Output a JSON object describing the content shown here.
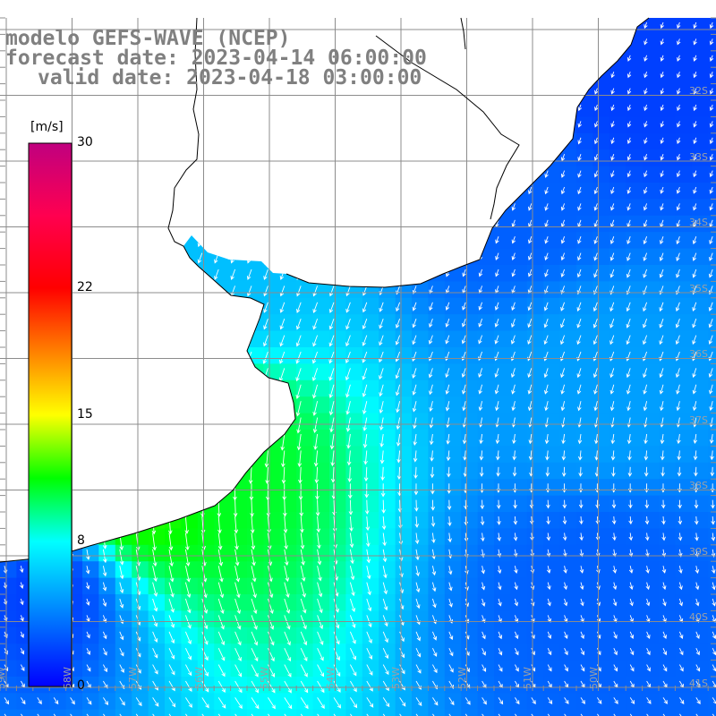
{
  "title": {
    "line1": "modelo GEFS-WAVE (NCEP)",
    "line2": "forecast date: 2023-04-14 06:00:00",
    "line3": "valid date: 2023-04-18 03:00:00"
  },
  "colorbar": {
    "unit": "[m/s]",
    "ticks": [
      {
        "label": "30",
        "value": 30
      },
      {
        "label": "22",
        "value": 22
      },
      {
        "label": "15",
        "value": 15
      },
      {
        "label": "8",
        "value": 8
      },
      {
        "label": "0",
        "value": 0
      }
    ],
    "stops": [
      {
        "value": 0,
        "color": "#0000ff"
      },
      {
        "value": 8,
        "color": "#00ffff"
      },
      {
        "value": 11.5,
        "color": "#00ff00"
      },
      {
        "value": 15,
        "color": "#ffff00"
      },
      {
        "value": 18.5,
        "color": "#ff8000"
      },
      {
        "value": 22,
        "color": "#ff0000"
      },
      {
        "value": 26,
        "color": "#ff0050"
      },
      {
        "value": 30,
        "color": "#c0007f"
      }
    ]
  },
  "lat_labels": [
    "32S",
    "33S",
    "34S",
    "35S",
    "36S",
    "37S",
    "38S",
    "39S",
    "40S",
    "41S"
  ],
  "lon_labels": [
    "60W",
    "59W",
    "58W",
    "57W",
    "56W",
    "55W",
    "54W",
    "53W",
    "52W",
    "51W",
    "50W"
  ],
  "field": {
    "description_of_values": "wind speed in m/s shown as colored cells, arrows show direction",
    "sample_cells": [
      {
        "lon": -49.5,
        "lat": -32.5,
        "speed": 2
      },
      {
        "lon": -51.5,
        "lat": -34.5,
        "speed": 3
      },
      {
        "lon": -55.5,
        "lat": -35.5,
        "speed": 6
      },
      {
        "lon": -56.0,
        "lat": -38.5,
        "speed": 11
      },
      {
        "lon": -57.0,
        "lat": -39.0,
        "speed": 12
      },
      {
        "lon": -59.0,
        "lat": -39.2,
        "speed": 10
      },
      {
        "lon": -58.5,
        "lat": -40.5,
        "speed": 2
      },
      {
        "lon": -50.0,
        "lat": -37.5,
        "speed": 5
      },
      {
        "lon": -50.0,
        "lat": -40.5,
        "speed": 3
      }
    ]
  }
}
